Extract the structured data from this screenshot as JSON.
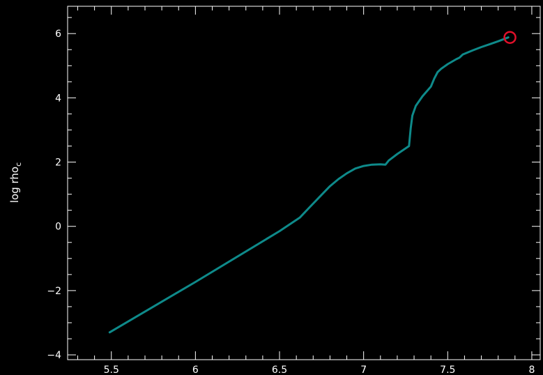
{
  "chart_data": {
    "type": "line",
    "title": "",
    "xlabel": "",
    "ylabel": "log rho",
    "ylabel_subscript": "c",
    "xlim": [
      5.24,
      8.05
    ],
    "ylim": [
      -4.15,
      6.85
    ],
    "x_ticks": [
      5.5,
      6,
      6.5,
      7,
      7.5,
      8
    ],
    "x_tick_labels": [
      "5.5",
      "6",
      "6.5",
      "7",
      "7.5",
      "8"
    ],
    "y_ticks": [
      -4,
      -2,
      0,
      2,
      4,
      6
    ],
    "y_tick_labels": [
      "−4",
      "−2",
      "0",
      "2",
      "4",
      "6"
    ],
    "grid": false,
    "background": "#000000",
    "axis_color": "#ffffff",
    "series": [
      {
        "color": "#0e8a8a",
        "x": [
          5.49,
          6.0,
          6.5,
          6.62,
          6.68,
          6.75,
          6.8,
          6.85,
          6.9,
          6.95,
          7.0,
          7.05,
          7.1,
          7.13,
          7.15,
          7.2,
          7.27,
          7.28,
          7.29,
          7.31,
          7.35,
          7.4,
          7.42,
          7.44,
          7.46,
          7.5,
          7.55,
          7.57,
          7.59,
          7.65,
          7.7,
          7.75,
          7.8,
          7.86
        ],
        "y": [
          -3.3,
          -1.73,
          -0.15,
          0.27,
          0.6,
          0.98,
          1.25,
          1.47,
          1.65,
          1.8,
          1.88,
          1.92,
          1.93,
          1.92,
          2.05,
          2.25,
          2.5,
          3.05,
          3.45,
          3.75,
          4.05,
          4.35,
          4.6,
          4.8,
          4.9,
          5.05,
          5.2,
          5.25,
          5.35,
          5.48,
          5.58,
          5.67,
          5.76,
          5.88
        ]
      }
    ],
    "endpoint_marker": {
      "x": 7.87,
      "y": 5.88,
      "color": "#e0102a"
    }
  }
}
